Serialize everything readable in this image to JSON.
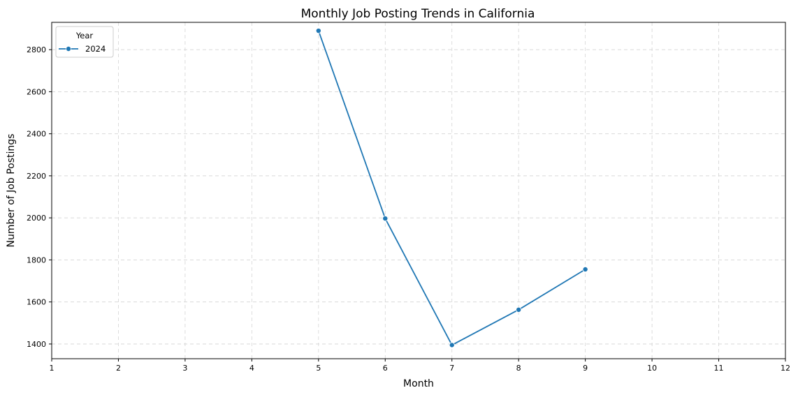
{
  "chart_data": {
    "type": "line",
    "title": "Monthly Job Posting Trends in California",
    "xlabel": "Month",
    "ylabel": "Number of Job Postings",
    "xlim": [
      1,
      12
    ],
    "ylim": [
      1330,
      2930
    ],
    "x_ticks": [
      1,
      2,
      3,
      4,
      5,
      6,
      7,
      8,
      9,
      10,
      11,
      12
    ],
    "y_ticks": [
      1400,
      1600,
      1800,
      2000,
      2200,
      2400,
      2600,
      2800
    ],
    "grid": true,
    "legend": {
      "title": "Year",
      "placement": "top-left"
    },
    "series": [
      {
        "name": "2024",
        "color": "#1f77b4",
        "marker": "circle",
        "x": [
          5,
          6,
          7,
          8,
          9
        ],
        "y": [
          2890,
          1997,
          1395,
          1563,
          1755
        ]
      }
    ]
  }
}
